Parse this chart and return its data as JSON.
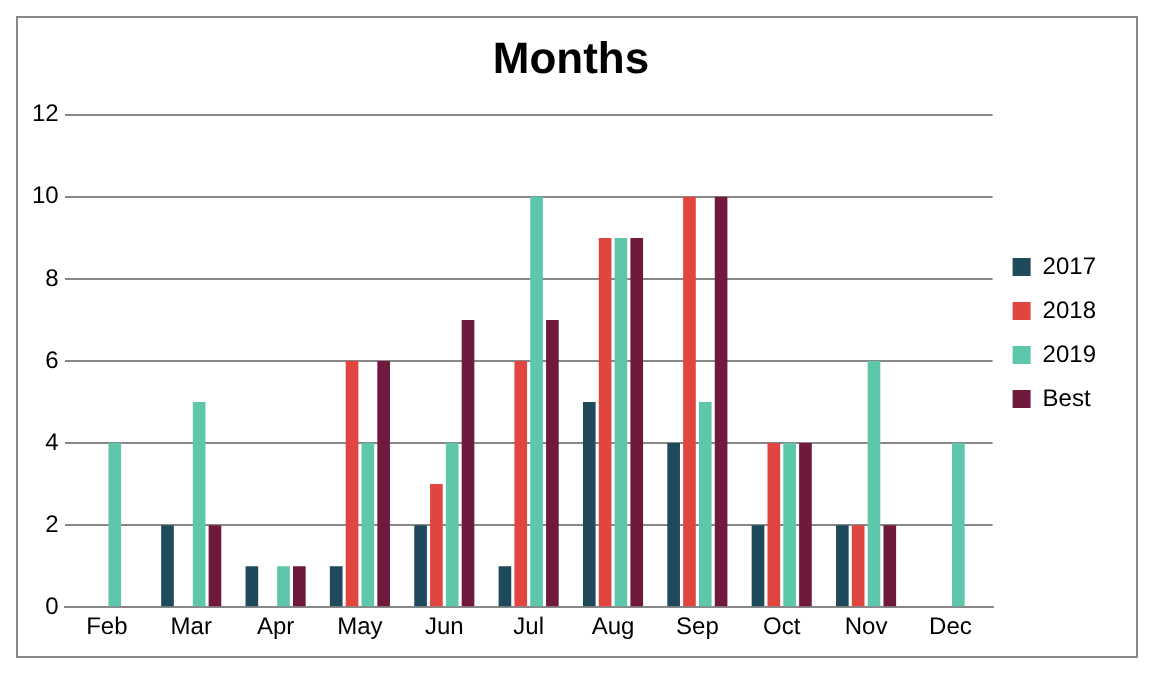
{
  "chart_data": {
    "type": "bar",
    "title": "Months",
    "categories": [
      "Feb",
      "Mar",
      "Apr",
      "May",
      "Jun",
      "Jul",
      "Aug",
      "Sep",
      "Oct",
      "Nov",
      "Dec"
    ],
    "series": [
      {
        "name": "2017",
        "color": "#1e4a5c",
        "values": [
          null,
          2,
          1,
          1,
          2,
          1,
          5,
          4,
          2,
          2,
          null
        ]
      },
      {
        "name": "2018",
        "color": "#e0463f",
        "values": [
          null,
          null,
          null,
          6,
          3,
          6,
          9,
          10,
          4,
          2,
          null
        ]
      },
      {
        "name": "2019",
        "color": "#5ec7ab",
        "values": [
          4,
          5,
          1,
          4,
          4,
          10,
          9,
          5,
          4,
          6,
          4
        ]
      },
      {
        "name": "Best",
        "color": "#6f1a3c",
        "values": [
          null,
          2,
          1,
          6,
          7,
          7,
          9,
          10,
          4,
          2,
          null
        ]
      }
    ],
    "ylim": [
      0,
      12
    ],
    "yticks": [
      0,
      2,
      4,
      6,
      8,
      10,
      12
    ],
    "grid": "y",
    "legend": "right"
  }
}
